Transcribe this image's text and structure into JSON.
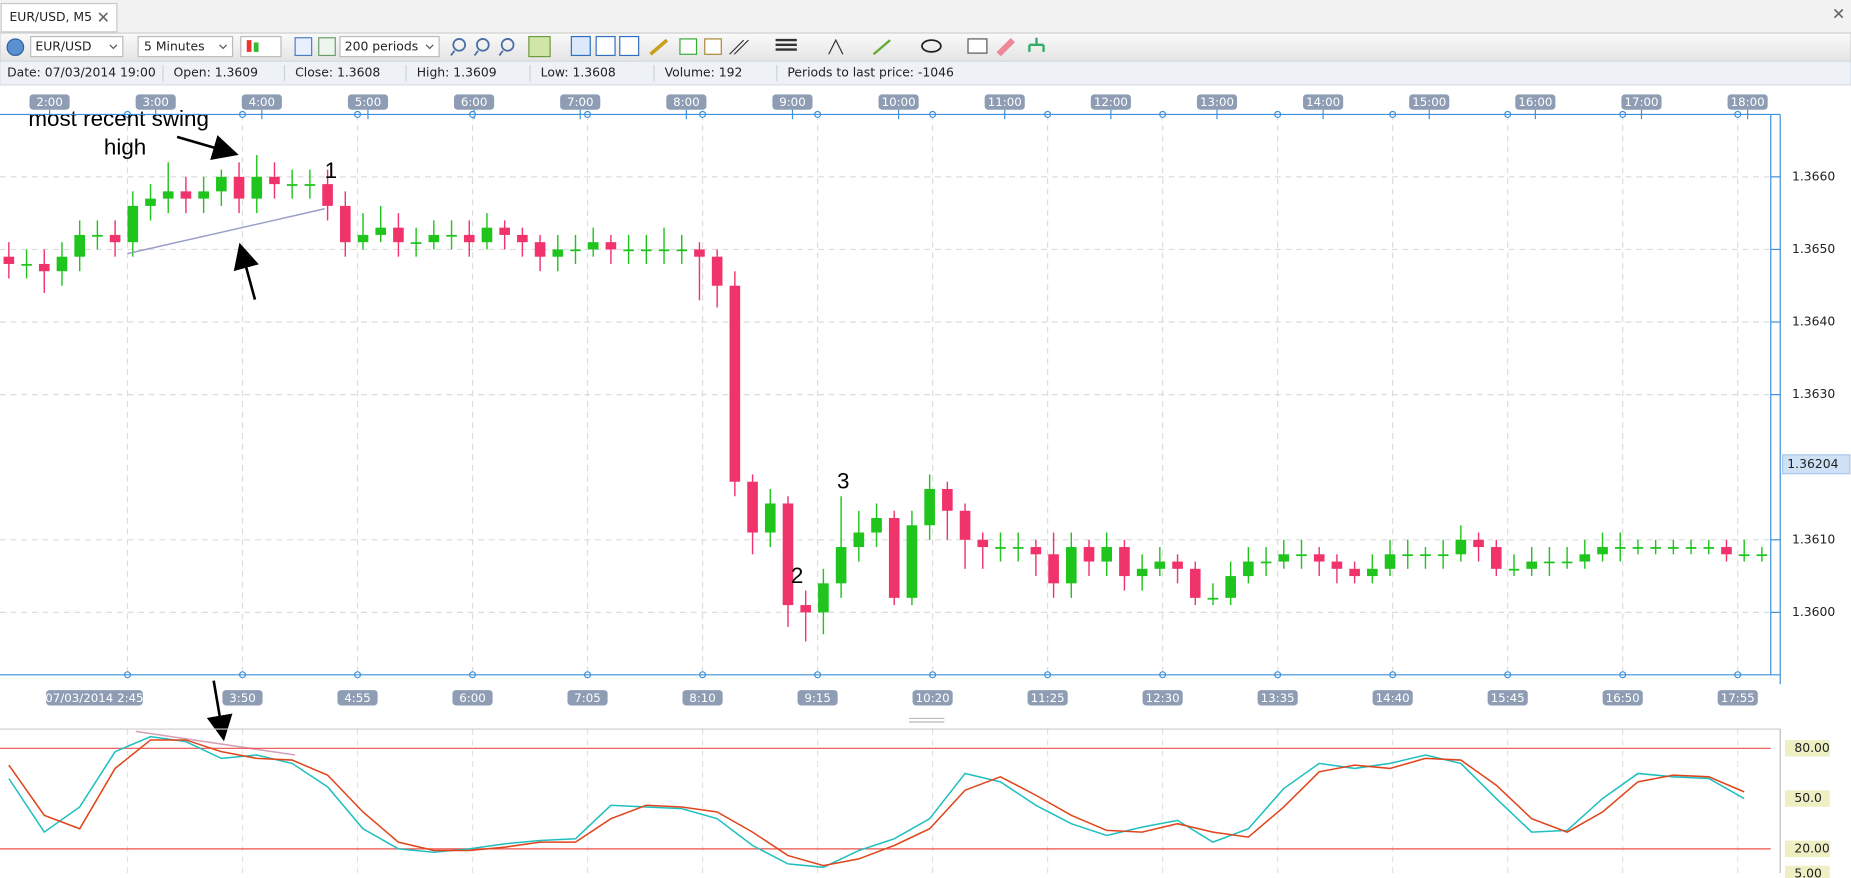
{
  "tab": {
    "title": "EUR/USD, M5"
  },
  "toolbar": {
    "symbol": "EUR/USD",
    "timeframe": "5 Minutes",
    "periods": "200 periods"
  },
  "info": [
    "Date: 07/03/2014 19:00",
    "Open: 1.3609",
    "Close: 1.3608",
    "High: 1.3609",
    "Low: 1.3608",
    "Volume: 192",
    "Periods to last price: -1046"
  ],
  "annotations": [
    "most recent swing",
    "high",
    "1",
    "2",
    "3"
  ],
  "chart_data": [
    {
      "type": "candlestick",
      "open": [
        1.3649,
        1.3648,
        1.3648,
        1.3647,
        1.3649,
        1.3652,
        1.3652,
        1.3651,
        1.3656,
        1.3657,
        1.3658,
        1.3657,
        1.3658,
        1.366,
        1.3657,
        1.366,
        1.3659,
        1.3659,
        1.3659,
        1.3656,
        1.3651,
        1.3652,
        1.3653,
        1.3651,
        1.3651,
        1.3652,
        1.3652,
        1.3651,
        1.3653,
        1.3652,
        1.3651,
        1.3649,
        1.365,
        1.365,
        1.3651,
        1.365,
        1.365,
        1.365,
        1.365,
        1.365,
        1.3649,
        1.3645,
        1.3618,
        1.3611,
        1.3615,
        1.3601,
        1.36,
        1.3604,
        1.3609,
        1.3611,
        1.3613,
        1.3602,
        1.3612,
        1.3617,
        1.3614,
        1.361,
        1.3609,
        1.3609,
        1.3609,
        1.3608,
        1.3604,
        1.3609,
        1.3607,
        1.3609,
        1.3605,
        1.3606,
        1.3607,
        1.3606,
        1.3602,
        1.3602,
        1.3605,
        1.3607,
        1.3607,
        1.3608,
        1.3608,
        1.3607,
        1.3606,
        1.3605,
        1.3606,
        1.3608,
        1.3608,
        1.3608,
        1.3608,
        1.361,
        1.3609,
        1.3606,
        1.3606,
        1.3607,
        1.3607,
        1.3607,
        1.3608,
        1.3609,
        1.3609,
        1.3609,
        1.3609,
        1.3609,
        1.3609,
        1.3609,
        1.3608,
        1.3608
      ],
      "high": [
        1.3651,
        1.365,
        1.365,
        1.3651,
        1.3654,
        1.3654,
        1.3654,
        1.3658,
        1.3659,
        1.3662,
        1.366,
        1.366,
        1.3661,
        1.3662,
        1.3663,
        1.3662,
        1.3661,
        1.3661,
        1.3661,
        1.3658,
        1.3655,
        1.3656,
        1.3655,
        1.3653,
        1.3654,
        1.3654,
        1.3654,
        1.3655,
        1.3654,
        1.3653,
        1.3652,
        1.3652,
        1.3652,
        1.3653,
        1.3652,
        1.3652,
        1.3652,
        1.3653,
        1.3652,
        1.3651,
        1.365,
        1.3647,
        1.3619,
        1.3617,
        1.3616,
        1.3603,
        1.3606,
        1.3616,
        1.3614,
        1.3615,
        1.3614,
        1.3614,
        1.3619,
        1.3618,
        1.3615,
        1.3611,
        1.3611,
        1.3611,
        1.361,
        1.3611,
        1.3611,
        1.361,
        1.3611,
        1.361,
        1.3608,
        1.3609,
        1.3608,
        1.3607,
        1.3604,
        1.3607,
        1.3609,
        1.3609,
        1.361,
        1.361,
        1.3609,
        1.3608,
        1.3607,
        1.3608,
        1.361,
        1.361,
        1.3609,
        1.361,
        1.3612,
        1.3611,
        1.361,
        1.3608,
        1.3609,
        1.3609,
        1.3609,
        1.361,
        1.3611,
        1.3611,
        1.361,
        1.361,
        1.361,
        1.361,
        1.361,
        1.361,
        1.361,
        1.3609
      ],
      "low": [
        1.3646,
        1.3646,
        1.3644,
        1.3645,
        1.3647,
        1.365,
        1.3649,
        1.3649,
        1.3654,
        1.3655,
        1.3655,
        1.3655,
        1.3656,
        1.3655,
        1.3655,
        1.3657,
        1.3657,
        1.3657,
        1.3654,
        1.3649,
        1.365,
        1.3651,
        1.3649,
        1.3649,
        1.365,
        1.365,
        1.3649,
        1.365,
        1.365,
        1.3649,
        1.3647,
        1.3647,
        1.3648,
        1.3649,
        1.3648,
        1.3648,
        1.3648,
        1.3648,
        1.3648,
        1.3643,
        1.3642,
        1.3616,
        1.3608,
        1.3609,
        1.3598,
        1.3596,
        1.3597,
        1.3602,
        1.3607,
        1.3609,
        1.3601,
        1.3601,
        1.361,
        1.361,
        1.3606,
        1.3606,
        1.3607,
        1.3607,
        1.3605,
        1.3602,
        1.3602,
        1.3605,
        1.3605,
        1.3603,
        1.3603,
        1.3605,
        1.3604,
        1.3601,
        1.3601,
        1.3601,
        1.3604,
        1.3605,
        1.3606,
        1.3606,
        1.3605,
        1.3604,
        1.3604,
        1.3604,
        1.3605,
        1.3606,
        1.3606,
        1.3606,
        1.3607,
        1.3607,
        1.3605,
        1.3605,
        1.3605,
        1.3605,
        1.3606,
        1.3606,
        1.3607,
        1.3607,
        1.3608,
        1.3608,
        1.3608,
        1.3608,
        1.3608,
        1.3607,
        1.3607,
        1.3607
      ],
      "close": [
        1.3648,
        1.3648,
        1.3647,
        1.3649,
        1.3652,
        1.3652,
        1.3651,
        1.3656,
        1.3657,
        1.3658,
        1.3657,
        1.3658,
        1.366,
        1.3657,
        1.366,
        1.3659,
        1.3659,
        1.3659,
        1.3656,
        1.3651,
        1.3652,
        1.3653,
        1.3651,
        1.3651,
        1.3652,
        1.3652,
        1.3651,
        1.3653,
        1.3652,
        1.3651,
        1.3649,
        1.365,
        1.365,
        1.3651,
        1.365,
        1.365,
        1.365,
        1.365,
        1.365,
        1.3649,
        1.3645,
        1.3618,
        1.3611,
        1.3615,
        1.3601,
        1.36,
        1.3604,
        1.3609,
        1.3611,
        1.3613,
        1.3602,
        1.3612,
        1.3617,
        1.3614,
        1.361,
        1.3609,
        1.3609,
        1.3609,
        1.3608,
        1.3604,
        1.3609,
        1.3607,
        1.3609,
        1.3605,
        1.3606,
        1.3607,
        1.3606,
        1.3602,
        1.3602,
        1.3605,
        1.3607,
        1.3607,
        1.3608,
        1.3608,
        1.3607,
        1.3606,
        1.3605,
        1.3606,
        1.3608,
        1.3608,
        1.3608,
        1.3608,
        1.361,
        1.3609,
        1.3606,
        1.3606,
        1.3607,
        1.3607,
        1.3607,
        1.3608,
        1.3609,
        1.3609,
        1.3609,
        1.3609,
        1.3609,
        1.3609,
        1.3609,
        1.3608,
        1.3608,
        1.3608
      ],
      "ylim": [
        1.35914,
        1.36686
      ],
      "yticks": [
        {
          "value": 1.366,
          "label": "1.3660"
        },
        {
          "value": 1.365,
          "label": "1.3650"
        },
        {
          "value": 1.364,
          "label": "1.3640"
        },
        {
          "value": 1.363,
          "label": "1.3630"
        },
        {
          "value": 1.361,
          "label": "1.3610"
        },
        {
          "value": 1.36,
          "label": "1.3600"
        }
      ],
      "last_price": 1.36204,
      "up_color": "#1fc41d",
      "down_color": "#f0336b",
      "grid": true,
      "time_axis_top": [
        "2:00",
        "3:00",
        "4:00",
        "5:00",
        "6:00",
        "7:00",
        "8:00",
        "9:00",
        "10:00",
        "11:00",
        "12:00",
        "13:00",
        "14:00",
        "15:00",
        "16:00",
        "17:00",
        "18:00"
      ],
      "time_axis_bottom": [
        "07/03/2014 2:45",
        "3:50",
        "4:55",
        "6:00",
        "7:05",
        "8:10",
        "9:15",
        "10:20",
        "11:25",
        "12:30",
        "13:35",
        "14:40",
        "15:45",
        "16:50",
        "17:55"
      ]
    },
    {
      "type": "line",
      "series": [
        {
          "color": "#1fbfbf",
          "values": [
            62,
            30,
            45,
            78,
            87,
            84,
            74,
            76,
            71,
            57,
            32,
            20,
            18,
            20,
            23,
            25,
            26,
            46,
            45,
            44,
            38,
            22,
            11,
            9,
            19,
            26,
            38,
            65,
            60,
            46,
            35,
            28,
            33,
            37,
            24,
            32,
            56,
            71,
            68,
            71,
            76,
            71,
            50,
            30,
            31,
            50,
            65,
            63,
            62,
            50
          ]
        },
        {
          "color": "#e0451b",
          "values": [
            70,
            40,
            32,
            68,
            85,
            85,
            78,
            74,
            73,
            64,
            42,
            24,
            19,
            19,
            21,
            24,
            24,
            38,
            46,
            45,
            42,
            30,
            16,
            10,
            14,
            22,
            32,
            55,
            63,
            52,
            40,
            31,
            30,
            35,
            30,
            27,
            45,
            66,
            70,
            68,
            74,
            73,
            58,
            38,
            30,
            42,
            60,
            64,
            63,
            54
          ]
        }
      ],
      "ylim": [
        5.6,
        90.1
      ],
      "yticks": [
        {
          "value": 80,
          "label": "80.00"
        },
        {
          "value": 50,
          "label": "50.0"
        },
        {
          "value": 20,
          "label": "20.00"
        },
        {
          "value": 5,
          "label": "5.00"
        }
      ],
      "levels": [
        80,
        20
      ],
      "level_color": "#e8504a"
    }
  ]
}
